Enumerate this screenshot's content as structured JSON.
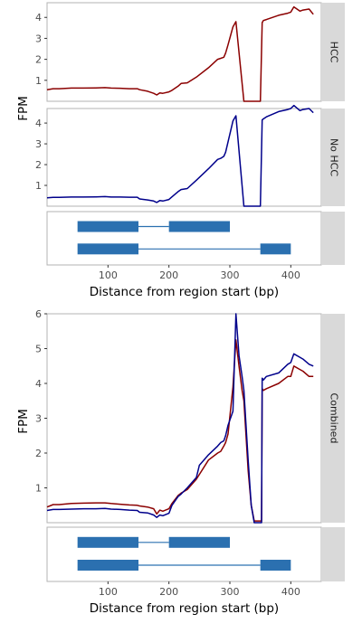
{
  "chart_data": [
    {
      "type": "line",
      "panel": "HCC",
      "strip_label": "HCC",
      "ylabel": "FPM",
      "xlim": [
        0,
        450
      ],
      "ylim": [
        0,
        4.7
      ],
      "yticks": [
        1,
        2,
        3,
        4
      ],
      "series": [
        {
          "color": "#8b0000",
          "x": [
            0,
            10,
            20,
            40,
            60,
            80,
            95,
            105,
            120,
            135,
            148,
            152,
            165,
            175,
            180,
            185,
            190,
            200,
            205,
            215,
            220,
            230,
            245,
            265,
            280,
            285,
            290,
            293,
            297,
            305,
            310,
            323,
            350,
            353,
            355,
            360,
            380,
            395,
            400,
            405,
            415,
            420,
            430,
            437
          ],
          "y": [
            0.55,
            0.6,
            0.6,
            0.63,
            0.63,
            0.64,
            0.65,
            0.63,
            0.62,
            0.6,
            0.6,
            0.55,
            0.48,
            0.38,
            0.3,
            0.4,
            0.38,
            0.45,
            0.52,
            0.72,
            0.85,
            0.88,
            1.15,
            1.6,
            2.0,
            2.05,
            2.1,
            2.3,
            2.7,
            3.55,
            3.8,
            0.0,
            0.0,
            3.75,
            3.85,
            3.9,
            4.1,
            4.2,
            4.25,
            4.5,
            4.3,
            4.35,
            4.4,
            4.15
          ]
        }
      ]
    },
    {
      "type": "line",
      "panel": "No HCC",
      "strip_label": "No HCC",
      "ylabel": "FPM",
      "xlim": [
        0,
        450
      ],
      "ylim": [
        0,
        4.7
      ],
      "yticks": [
        1,
        2,
        3,
        4
      ],
      "series": [
        {
          "color": "#00008b",
          "x": [
            0,
            10,
            20,
            40,
            60,
            80,
            95,
            105,
            120,
            135,
            148,
            152,
            165,
            175,
            180,
            185,
            190,
            200,
            205,
            215,
            220,
            230,
            245,
            265,
            280,
            285,
            290,
            293,
            297,
            305,
            310,
            323,
            350,
            353,
            355,
            360,
            380,
            395,
            400,
            405,
            415,
            420,
            430,
            437
          ],
          "y": [
            0.4,
            0.42,
            0.42,
            0.44,
            0.44,
            0.45,
            0.46,
            0.44,
            0.44,
            0.43,
            0.43,
            0.35,
            0.3,
            0.25,
            0.18,
            0.27,
            0.25,
            0.32,
            0.45,
            0.7,
            0.8,
            0.85,
            1.25,
            1.8,
            2.25,
            2.3,
            2.4,
            2.6,
            3.1,
            4.1,
            4.35,
            0.0,
            0.0,
            4.15,
            4.2,
            4.3,
            4.55,
            4.65,
            4.7,
            4.85,
            4.6,
            4.65,
            4.7,
            4.5
          ]
        }
      ]
    },
    {
      "type": "diagram",
      "panel": "Transcripts (top)",
      "xlabel": "Distance from region start (bp)",
      "xlim": [
        0,
        450
      ],
      "xticks": [
        100,
        200,
        300,
        400
      ],
      "transcripts": [
        {
          "exons": [
            [
              50,
              150
            ],
            [
              200,
              300
            ]
          ],
          "introns": [
            [
              150,
              200
            ]
          ]
        },
        {
          "exons": [
            [
              50,
              150
            ],
            [
              350,
              400
            ]
          ],
          "introns": [
            [
              150,
              350
            ]
          ]
        }
      ],
      "exon_color": "#2b70b0"
    },
    {
      "type": "line",
      "panel": "Combined",
      "strip_label": "Combined",
      "ylabel": "FPM",
      "xlim": [
        0,
        450
      ],
      "ylim": [
        0,
        6
      ],
      "yticks": [
        1,
        2,
        3,
        4,
        5,
        6
      ],
      "series": [
        {
          "color": "#8b0000",
          "x": [
            0,
            10,
            20,
            40,
            60,
            80,
            95,
            105,
            120,
            135,
            148,
            152,
            165,
            175,
            180,
            185,
            190,
            200,
            205,
            215,
            220,
            230,
            245,
            265,
            280,
            285,
            290,
            293,
            297,
            305,
            310,
            315,
            320,
            323,
            330,
            335,
            340,
            348,
            350,
            352,
            353,
            355,
            360,
            380,
            395,
            400,
            405,
            415,
            420,
            430,
            437
          ],
          "y": [
            0.45,
            0.52,
            0.52,
            0.55,
            0.56,
            0.57,
            0.57,
            0.55,
            0.53,
            0.51,
            0.5,
            0.48,
            0.45,
            0.4,
            0.25,
            0.36,
            0.33,
            0.4,
            0.55,
            0.78,
            0.85,
            0.95,
            1.25,
            1.8,
            2.0,
            2.05,
            2.2,
            2.3,
            2.55,
            3.9,
            5.25,
            4.5,
            3.8,
            3.5,
            1.5,
            0.5,
            0.05,
            0.05,
            0.05,
            0.05,
            3.85,
            3.8,
            3.85,
            4.0,
            4.2,
            4.2,
            4.5,
            4.4,
            4.35,
            4.2,
            4.2
          ]
        },
        {
          "color": "#00008b",
          "x": [
            0,
            10,
            20,
            40,
            60,
            80,
            95,
            105,
            120,
            135,
            148,
            152,
            165,
            175,
            180,
            185,
            190,
            200,
            205,
            215,
            220,
            230,
            245,
            250,
            265,
            280,
            285,
            290,
            293,
            297,
            305,
            310,
            315,
            320,
            323,
            330,
            335,
            340,
            348,
            350,
            352,
            353,
            355,
            360,
            380,
            395,
            400,
            405,
            415,
            420,
            430,
            437
          ],
          "y": [
            0.35,
            0.38,
            0.38,
            0.39,
            0.4,
            0.4,
            0.41,
            0.39,
            0.38,
            0.36,
            0.35,
            0.3,
            0.28,
            0.22,
            0.15,
            0.22,
            0.2,
            0.27,
            0.5,
            0.75,
            0.82,
            1.0,
            1.3,
            1.65,
            1.95,
            2.2,
            2.3,
            2.35,
            2.5,
            2.8,
            3.2,
            6.0,
            4.8,
            4.2,
            3.8,
            1.8,
            0.5,
            0.0,
            0.0,
            0.0,
            0.0,
            4.15,
            4.1,
            4.2,
            4.3,
            4.55,
            4.6,
            4.85,
            4.75,
            4.7,
            4.55,
            4.5
          ]
        }
      ]
    },
    {
      "type": "diagram",
      "panel": "Transcripts (bottom)",
      "xlabel": "Distance from region start (bp)",
      "xlim": [
        0,
        450
      ],
      "xticks": [
        100,
        200,
        300,
        400
      ],
      "transcripts": [
        {
          "exons": [
            [
              50,
              150
            ],
            [
              200,
              300
            ]
          ],
          "introns": [
            [
              150,
              200
            ]
          ]
        },
        {
          "exons": [
            [
              50,
              150
            ],
            [
              350,
              400
            ]
          ],
          "introns": [
            [
              150,
              350
            ]
          ]
        }
      ],
      "exon_color": "#2b70b0"
    }
  ]
}
